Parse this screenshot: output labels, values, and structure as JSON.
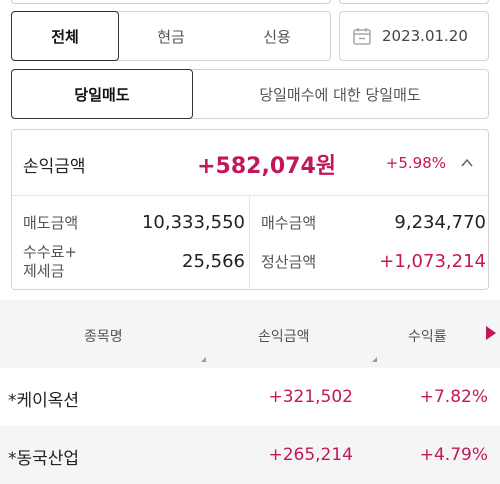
{
  "filters": {
    "category_tabs": [
      "전체",
      "현금",
      "신용"
    ],
    "active_category": 0,
    "date": "2023.01.20"
  },
  "sell_tabs": {
    "items": [
      "당일매도",
      "당일매수에 대한 당일매도"
    ],
    "active": 0
  },
  "summary": {
    "label": "손익금액",
    "value": "+582,074원",
    "percent": "+5.98%",
    "sell_amount_label": "매도금액",
    "sell_amount": "10,333,550",
    "buy_amount_label": "매수금액",
    "buy_amount": "9,234,770",
    "fee_tax_label_line1": "수수료+",
    "fee_tax_label_line2": "제세금",
    "fee_tax": "25,566",
    "settlement_label": "정산금액",
    "settlement": "+1,073,214"
  },
  "table": {
    "columns": [
      "종목명",
      "손익금액",
      "수익률"
    ],
    "rows": [
      {
        "name": "*케이옥션",
        "profit": "+321,502",
        "rate": "+7.82%"
      },
      {
        "name": "*동국산업",
        "profit": "+265,214",
        "rate": "+4.79%"
      }
    ]
  },
  "colors": {
    "accent": "#c2185b",
    "border": "#d4d4d4",
    "header_bg": "#f5f5f5"
  }
}
